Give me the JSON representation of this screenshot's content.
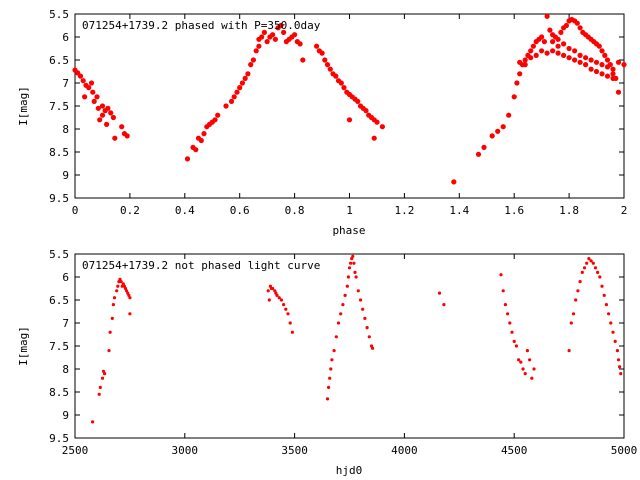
{
  "chart_data": [
    {
      "type": "scatter",
      "title": "071254+1739.2 phased with P=350.0day",
      "xlabel": "phase",
      "ylabel": "I[mag]",
      "xlim": [
        0,
        2
      ],
      "ylim": [
        5.5,
        9.5
      ],
      "y_inverted": true,
      "grid": false,
      "marker_color": "#ff0000",
      "x_ticks": [
        "0",
        "0.2",
        "0.4",
        "0.6",
        "0.8",
        "1",
        "1.2",
        "1.4",
        "1.6",
        "1.8",
        "2"
      ],
      "y_ticks": [
        "5.5",
        "6",
        "6.5",
        "7",
        "7.5",
        "8",
        "8.5",
        "9",
        "9.5"
      ],
      "points": [
        [
          0.0,
          6.72
        ],
        [
          0.01,
          6.78
        ],
        [
          0.02,
          6.85
        ],
        [
          0.03,
          6.95
        ],
        [
          0.035,
          7.3
        ],
        [
          0.04,
          7.05
        ],
        [
          0.05,
          7.1
        ],
        [
          0.06,
          7.0
        ],
        [
          0.065,
          7.2
        ],
        [
          0.07,
          7.4
        ],
        [
          0.08,
          7.3
        ],
        [
          0.085,
          7.55
        ],
        [
          0.09,
          7.8
        ],
        [
          0.1,
          7.7
        ],
        [
          0.1,
          7.5
        ],
        [
          0.11,
          7.6
        ],
        [
          0.115,
          7.9
        ],
        [
          0.12,
          7.55
        ],
        [
          0.13,
          7.65
        ],
        [
          0.14,
          7.75
        ],
        [
          0.145,
          8.2
        ],
        [
          0.17,
          7.95
        ],
        [
          0.18,
          8.1
        ],
        [
          0.19,
          8.15
        ],
        [
          0.41,
          8.65
        ],
        [
          0.43,
          8.4
        ],
        [
          0.44,
          8.45
        ],
        [
          0.45,
          8.2
        ],
        [
          0.46,
          8.25
        ],
        [
          0.47,
          8.1
        ],
        [
          0.48,
          7.95
        ],
        [
          0.49,
          7.9
        ],
        [
          0.5,
          7.85
        ],
        [
          0.51,
          7.8
        ],
        [
          0.52,
          7.7
        ],
        [
          0.55,
          7.5
        ],
        [
          0.57,
          7.4
        ],
        [
          0.58,
          7.3
        ],
        [
          0.59,
          7.2
        ],
        [
          0.6,
          7.1
        ],
        [
          0.61,
          7.0
        ],
        [
          0.62,
          6.9
        ],
        [
          0.63,
          6.8
        ],
        [
          0.64,
          6.6
        ],
        [
          0.65,
          6.5
        ],
        [
          0.66,
          6.3
        ],
        [
          0.67,
          6.2
        ],
        [
          0.67,
          6.05
        ],
        [
          0.68,
          6.0
        ],
        [
          0.69,
          5.9
        ],
        [
          0.7,
          6.1
        ],
        [
          0.71,
          6.0
        ],
        [
          0.72,
          5.95
        ],
        [
          0.73,
          6.05
        ],
        [
          0.74,
          5.8
        ],
        [
          0.75,
          5.75
        ],
        [
          0.76,
          5.9
        ],
        [
          0.77,
          6.1
        ],
        [
          0.78,
          6.05
        ],
        [
          0.79,
          6.0
        ],
        [
          0.8,
          5.95
        ],
        [
          0.81,
          6.1
        ],
        [
          0.82,
          6.15
        ],
        [
          0.83,
          6.5
        ],
        [
          0.88,
          6.2
        ],
        [
          0.89,
          6.3
        ],
        [
          0.9,
          6.35
        ],
        [
          0.91,
          6.5
        ],
        [
          0.92,
          6.6
        ],
        [
          0.93,
          6.7
        ],
        [
          0.94,
          6.8
        ],
        [
          0.95,
          6.85
        ],
        [
          0.96,
          6.95
        ],
        [
          0.97,
          7.0
        ],
        [
          0.98,
          7.1
        ],
        [
          0.99,
          7.2
        ],
        [
          1.0,
          7.25
        ],
        [
          1.01,
          7.3
        ],
        [
          1.02,
          7.35
        ],
        [
          1.03,
          7.4
        ],
        [
          1.04,
          7.5
        ],
        [
          1.05,
          7.55
        ],
        [
          1.06,
          7.6
        ],
        [
          1.07,
          7.7
        ],
        [
          1.08,
          7.75
        ],
        [
          1.09,
          7.8
        ],
        [
          1.1,
          7.85
        ],
        [
          1.12,
          7.95
        ],
        [
          1.0,
          7.8
        ],
        [
          1.09,
          8.2
        ],
        [
          1.38,
          9.15
        ],
        [
          1.47,
          8.55
        ],
        [
          1.49,
          8.4
        ],
        [
          1.52,
          8.15
        ],
        [
          1.54,
          8.05
        ],
        [
          1.56,
          7.95
        ],
        [
          1.58,
          7.7
        ],
        [
          1.6,
          7.3
        ],
        [
          1.61,
          7.0
        ],
        [
          1.62,
          6.8
        ],
        [
          1.63,
          6.6
        ],
        [
          1.64,
          6.5
        ],
        [
          1.65,
          6.4
        ],
        [
          1.66,
          6.3
        ],
        [
          1.67,
          6.2
        ],
        [
          1.68,
          6.1
        ],
        [
          1.69,
          6.05
        ],
        [
          1.7,
          6.0
        ],
        [
          1.71,
          6.1
        ],
        [
          1.72,
          5.55
        ],
        [
          1.73,
          5.85
        ],
        [
          1.74,
          5.95
        ],
        [
          1.75,
          6.0
        ],
        [
          1.76,
          6.05
        ],
        [
          1.77,
          5.9
        ],
        [
          1.78,
          5.8
        ],
        [
          1.79,
          5.75
        ],
        [
          1.8,
          5.65
        ],
        [
          1.81,
          5.62
        ],
        [
          1.82,
          5.65
        ],
        [
          1.83,
          5.7
        ],
        [
          1.84,
          5.8
        ],
        [
          1.85,
          5.9
        ],
        [
          1.86,
          5.95
        ],
        [
          1.87,
          6.0
        ],
        [
          1.88,
          6.05
        ],
        [
          1.89,
          6.1
        ],
        [
          1.9,
          6.15
        ],
        [
          1.91,
          6.2
        ],
        [
          1.92,
          6.3
        ],
        [
          1.93,
          6.4
        ],
        [
          1.94,
          6.5
        ],
        [
          1.95,
          6.6
        ],
        [
          1.96,
          6.8
        ],
        [
          1.97,
          6.9
        ],
        [
          1.98,
          7.2
        ],
        [
          1.62,
          6.55
        ],
        [
          1.64,
          6.6
        ],
        [
          1.66,
          6.45
        ],
        [
          1.68,
          6.4
        ],
        [
          1.7,
          6.3
        ],
        [
          1.72,
          6.35
        ],
        [
          1.74,
          6.3
        ],
        [
          1.76,
          6.35
        ],
        [
          1.78,
          6.4
        ],
        [
          1.8,
          6.45
        ],
        [
          1.82,
          6.5
        ],
        [
          1.84,
          6.55
        ],
        [
          1.86,
          6.6
        ],
        [
          1.88,
          6.7
        ],
        [
          1.9,
          6.75
        ],
        [
          1.92,
          6.8
        ],
        [
          1.94,
          6.85
        ],
        [
          1.96,
          6.9
        ],
        [
          1.74,
          6.1
        ],
        [
          1.76,
          6.2
        ],
        [
          1.78,
          6.15
        ],
        [
          1.8,
          6.25
        ],
        [
          1.82,
          6.3
        ],
        [
          1.84,
          6.4
        ],
        [
          1.86,
          6.45
        ],
        [
          1.88,
          6.5
        ],
        [
          1.9,
          6.55
        ],
        [
          1.92,
          6.6
        ],
        [
          1.94,
          6.65
        ],
        [
          1.96,
          6.7
        ],
        [
          1.98,
          6.55
        ],
        [
          2.0,
          6.6
        ]
      ]
    },
    {
      "type": "scatter",
      "title": "071254+1739.2 not phased light curve",
      "xlabel": "hjd0",
      "ylabel": "I[mag]",
      "xlim": [
        2500,
        5000
      ],
      "ylim": [
        5.5,
        9.5
      ],
      "y_inverted": true,
      "grid": false,
      "marker_color": "#ff0000",
      "x_ticks": [
        "2500",
        "3000",
        "3500",
        "4000",
        "4500",
        "5000"
      ],
      "y_ticks": [
        "5.5",
        "6",
        "6.5",
        "7",
        "7.5",
        "8",
        "8.5",
        "9",
        "9.5"
      ],
      "points": [
        [
          2580,
          9.15
        ],
        [
          2610,
          8.55
        ],
        [
          2615,
          8.4
        ],
        [
          2625,
          8.2
        ],
        [
          2630,
          8.05
        ],
        [
          2635,
          8.1
        ],
        [
          2655,
          7.6
        ],
        [
          2660,
          7.2
        ],
        [
          2670,
          6.9
        ],
        [
          2675,
          6.6
        ],
        [
          2680,
          6.45
        ],
        [
          2690,
          6.3
        ],
        [
          2695,
          6.2
        ],
        [
          2700,
          6.1
        ],
        [
          2705,
          6.05
        ],
        [
          2710,
          6.1
        ],
        [
          2715,
          6.2
        ],
        [
          2720,
          6.15
        ],
        [
          2725,
          6.2
        ],
        [
          2730,
          6.25
        ],
        [
          2735,
          6.3
        ],
        [
          2740,
          6.35
        ],
        [
          2745,
          6.4
        ],
        [
          2750,
          6.45
        ],
        [
          2750,
          6.8
        ],
        [
          3380,
          6.3
        ],
        [
          3385,
          6.5
        ],
        [
          3390,
          6.2
        ],
        [
          3395,
          6.25
        ],
        [
          3400,
          6.25
        ],
        [
          3410,
          6.3
        ],
        [
          3415,
          6.35
        ],
        [
          3420,
          6.4
        ],
        [
          3430,
          6.45
        ],
        [
          3440,
          6.5
        ],
        [
          3450,
          6.6
        ],
        [
          3460,
          6.7
        ],
        [
          3470,
          6.8
        ],
        [
          3480,
          7.0
        ],
        [
          3490,
          7.2
        ],
        [
          3650,
          8.65
        ],
        [
          3655,
          8.4
        ],
        [
          3660,
          8.2
        ],
        [
          3665,
          8.0
        ],
        [
          3670,
          7.8
        ],
        [
          3680,
          7.6
        ],
        [
          3690,
          7.3
        ],
        [
          3700,
          7.0
        ],
        [
          3710,
          6.8
        ],
        [
          3720,
          6.6
        ],
        [
          3730,
          6.4
        ],
        [
          3740,
          6.2
        ],
        [
          3745,
          6.0
        ],
        [
          3750,
          5.8
        ],
        [
          3755,
          5.7
        ],
        [
          3760,
          5.6
        ],
        [
          3765,
          5.55
        ],
        [
          3770,
          5.7
        ],
        [
          3775,
          5.9
        ],
        [
          3780,
          6.0
        ],
        [
          3790,
          6.3
        ],
        [
          3800,
          6.5
        ],
        [
          3810,
          6.7
        ],
        [
          3820,
          6.9
        ],
        [
          3830,
          7.1
        ],
        [
          3840,
          7.3
        ],
        [
          3850,
          7.5
        ],
        [
          3855,
          7.55
        ],
        [
          4160,
          6.35
        ],
        [
          4180,
          6.6
        ],
        [
          4440,
          5.95
        ],
        [
          4450,
          6.3
        ],
        [
          4460,
          6.6
        ],
        [
          4470,
          6.8
        ],
        [
          4480,
          7.0
        ],
        [
          4490,
          7.2
        ],
        [
          4500,
          7.4
        ],
        [
          4510,
          7.5
        ],
        [
          4520,
          7.8
        ],
        [
          4530,
          7.85
        ],
        [
          4540,
          8.0
        ],
        [
          4550,
          8.1
        ],
        [
          4560,
          7.6
        ],
        [
          4570,
          7.8
        ],
        [
          4580,
          8.2
        ],
        [
          4590,
          8.0
        ],
        [
          4750,
          7.6
        ],
        [
          4760,
          7.0
        ],
        [
          4770,
          6.8
        ],
        [
          4780,
          6.5
        ],
        [
          4790,
          6.3
        ],
        [
          4800,
          6.1
        ],
        [
          4810,
          5.9
        ],
        [
          4820,
          5.8
        ],
        [
          4830,
          5.7
        ],
        [
          4840,
          5.6
        ],
        [
          4850,
          5.65
        ],
        [
          4860,
          5.7
        ],
        [
          4870,
          5.8
        ],
        [
          4880,
          5.9
        ],
        [
          4890,
          6.0
        ],
        [
          4900,
          6.2
        ],
        [
          4910,
          6.4
        ],
        [
          4920,
          6.6
        ],
        [
          4930,
          6.8
        ],
        [
          4940,
          7.0
        ],
        [
          4950,
          7.2
        ],
        [
          4960,
          7.4
        ],
        [
          4970,
          7.6
        ],
        [
          4975,
          7.8
        ],
        [
          4980,
          7.95
        ],
        [
          4985,
          8.1
        ]
      ]
    }
  ]
}
